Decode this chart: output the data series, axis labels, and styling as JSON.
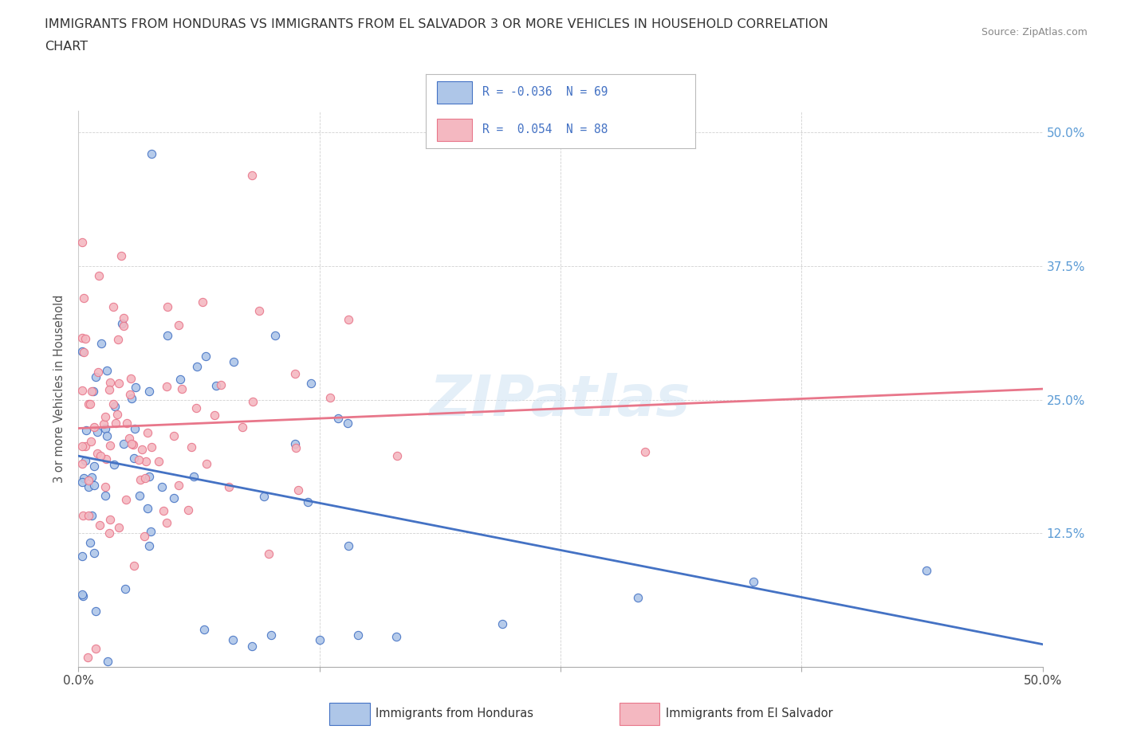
{
  "title_line1": "IMMIGRANTS FROM HONDURAS VS IMMIGRANTS FROM EL SALVADOR 3 OR MORE VEHICLES IN HOUSEHOLD CORRELATION",
  "title_line2": "CHART",
  "source_text": "Source: ZipAtlas.com",
  "ylabel": "3 or more Vehicles in Household",
  "xlim": [
    0.0,
    0.5
  ],
  "ylim": [
    0.0,
    0.52
  ],
  "xticks": [
    0.0,
    0.125,
    0.25,
    0.375,
    0.5
  ],
  "xtick_labels": [
    "0.0%",
    "",
    "",
    "",
    "50.0%"
  ],
  "yticks": [
    0.0,
    0.125,
    0.25,
    0.375,
    0.5
  ],
  "ytick_labels": [
    "",
    "12.5%",
    "25.0%",
    "37.5%",
    "50.0%"
  ],
  "watermark": "ZIPatlas",
  "color_honduras": "#aec6e8",
  "color_salvador": "#f4b8c1",
  "line_color_honduras": "#4472c4",
  "line_color_salvador": "#e8768a",
  "tick_color": "#5b9bd5",
  "background_color": "#ffffff",
  "legend_box_color": "#cccccc",
  "title_fontsize": 11.5,
  "tick_fontsize": 11,
  "scatter_size": 55
}
